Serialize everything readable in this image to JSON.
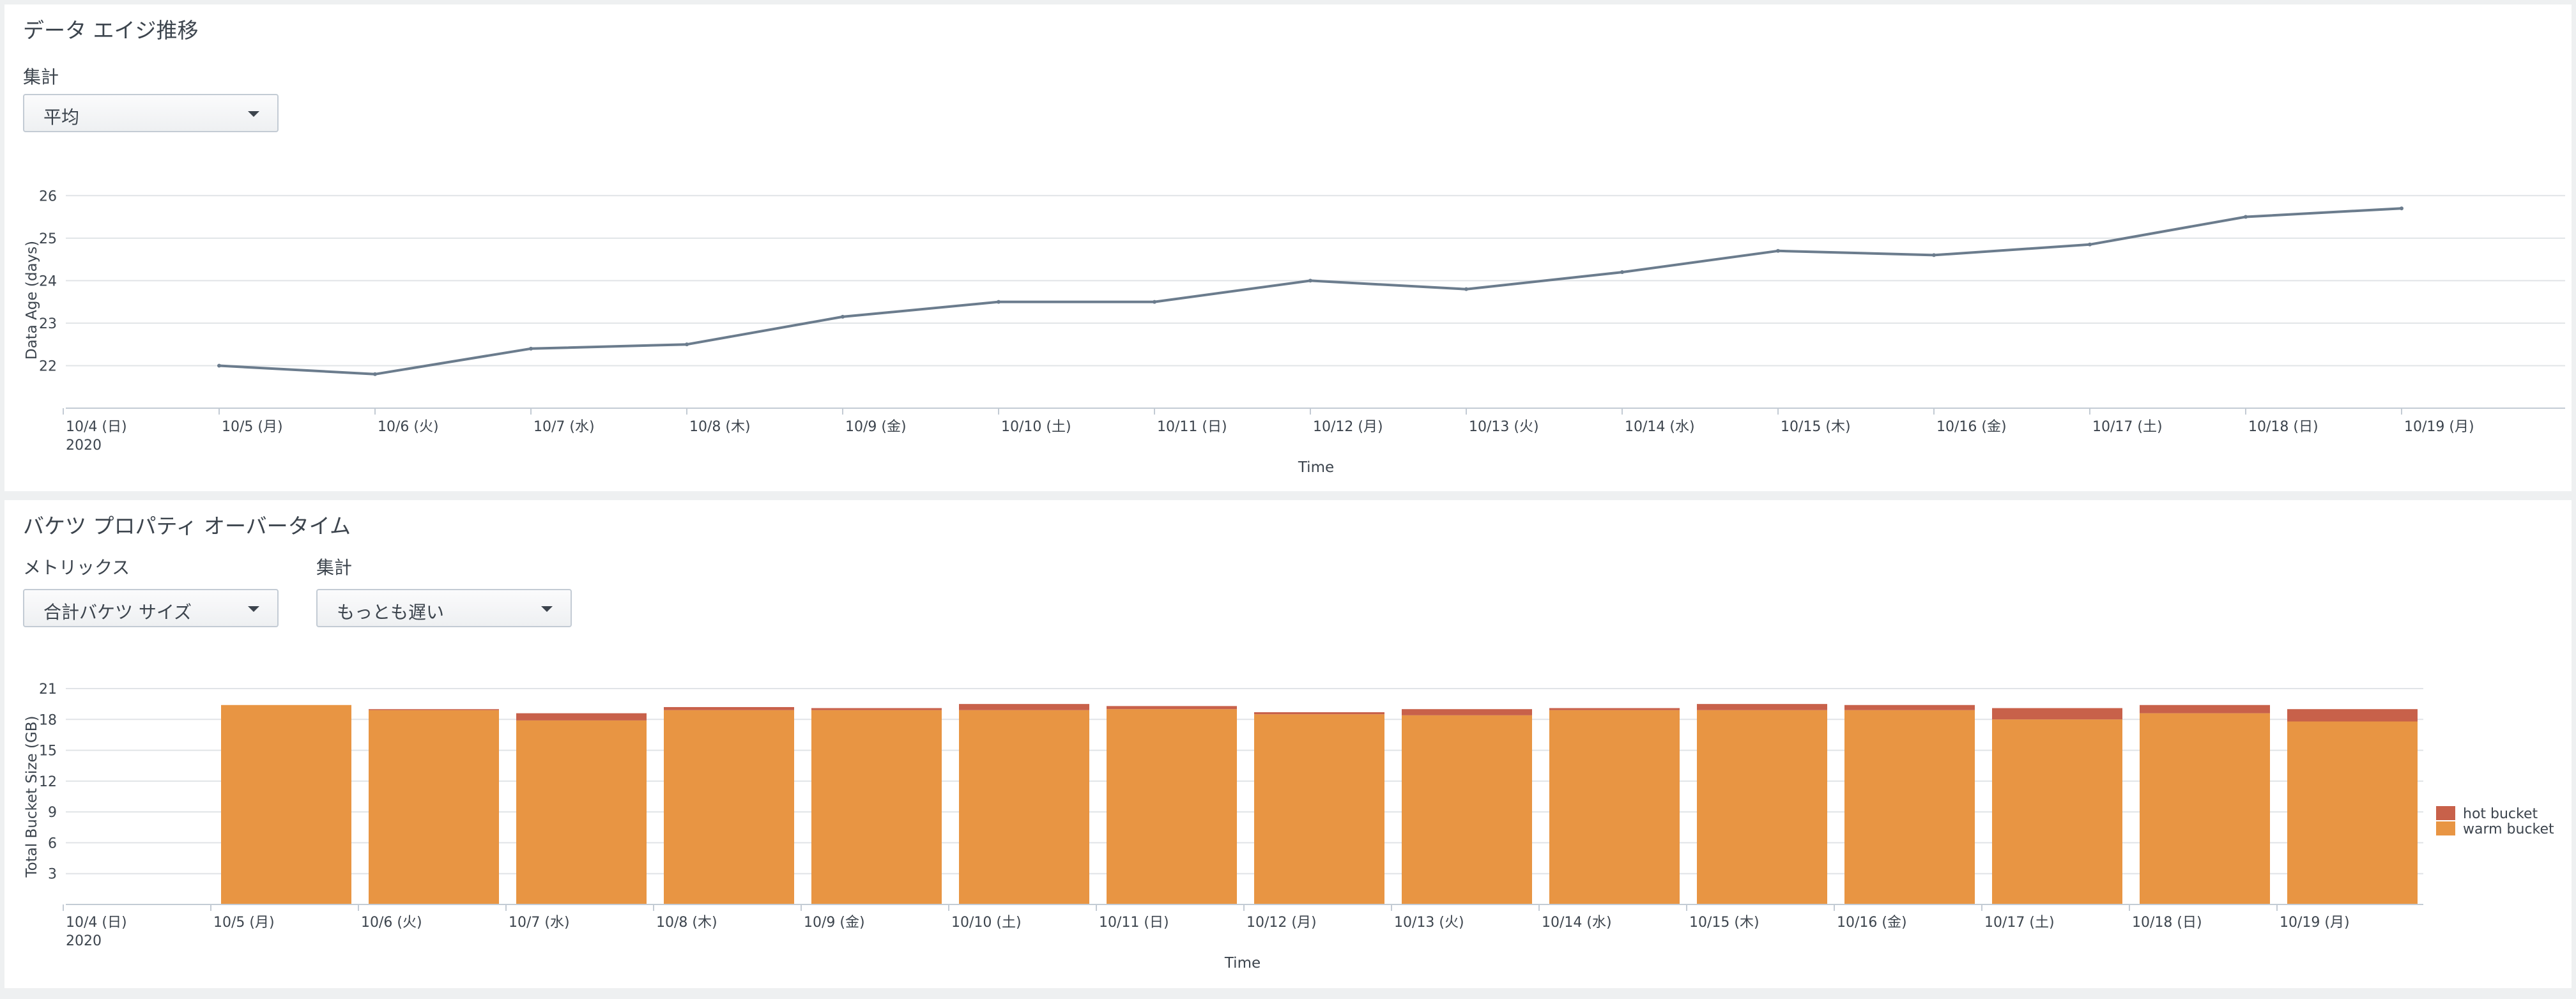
{
  "panel1": {
    "title": "データ エイジ推移",
    "aggregation_label": "集計",
    "aggregation_value": "平均"
  },
  "panel2": {
    "title": "バケツ プロパティ オーバータイム",
    "metrics_label": "メトリックス",
    "metrics_value": "合計バケツ サイズ",
    "aggregation_label": "集計",
    "aggregation_value": "もっとも遅い"
  },
  "colors": {
    "line": "#6b7c8d",
    "hot_bucket": "#c8614a",
    "warm_bucket": "#e89543",
    "grid": "#e1e4e7",
    "axis": "#c3cbd4"
  },
  "chart_data": [
    {
      "type": "line",
      "title": "",
      "xlabel": "Time",
      "ylabel": "Data Age (days)",
      "year_label": "2020",
      "x_tick_labels": [
        "10/4 (日)",
        "10/5 (月)",
        "10/6 (火)",
        "10/7 (水)",
        "10/8 (木)",
        "10/9 (金)",
        "10/10 (土)",
        "10/11 (日)",
        "10/12 (月)",
        "10/13 (火)",
        "10/14 (水)",
        "10/15 (木)",
        "10/16 (金)",
        "10/17 (土)",
        "10/18 (日)",
        "10/19 (月)"
      ],
      "y_ticks": [
        22,
        23,
        24,
        25,
        26
      ],
      "ylim": [
        21,
        26.5
      ],
      "grid": true,
      "series": [
        {
          "x": [
            "10/5 (月)",
            "10/6 (火)",
            "10/7 (水)",
            "10/8 (木)",
            "10/9 (金)",
            "10/10 (土)",
            "10/11 (日)",
            "10/12 (月)",
            "10/13 (火)",
            "10/14 (水)",
            "10/15 (木)",
            "10/16 (金)",
            "10/17 (土)",
            "10/18 (日)",
            "10/19 (月)"
          ],
          "values": [
            22.0,
            21.8,
            22.4,
            22.5,
            23.15,
            23.5,
            23.5,
            24.0,
            23.8,
            24.2,
            24.7,
            24.6,
            24.85,
            25.5,
            25.7
          ]
        }
      ]
    },
    {
      "type": "bar",
      "stacked": true,
      "title": "",
      "xlabel": "Time",
      "ylabel": "Total Bucket Size (GB)",
      "year_label": "2020",
      "x_tick_labels": [
        "10/4 (日)",
        "10/5 (月)",
        "10/6 (火)",
        "10/7 (水)",
        "10/8 (木)",
        "10/9 (金)",
        "10/10 (土)",
        "10/11 (日)",
        "10/12 (月)",
        "10/13 (火)",
        "10/14 (水)",
        "10/15 (木)",
        "10/16 (金)",
        "10/17 (土)",
        "10/18 (日)",
        "10/19 (月)"
      ],
      "categories": [
        "10/5 (月)",
        "10/6 (火)",
        "10/7 (水)",
        "10/8 (木)",
        "10/9 (金)",
        "10/10 (土)",
        "10/11 (日)",
        "10/12 (月)",
        "10/13 (火)",
        "10/14 (水)",
        "10/15 (木)",
        "10/16 (金)",
        "10/17 (土)",
        "10/18 (日)",
        "10/19 (月)"
      ],
      "y_ticks": [
        3,
        6,
        9,
        12,
        15,
        18,
        21
      ],
      "ylim": [
        0,
        21
      ],
      "grid": true,
      "legend_position": "right",
      "series": [
        {
          "name": "warm bucket",
          "values": [
            19.4,
            18.9,
            17.9,
            18.9,
            18.9,
            18.9,
            19.0,
            18.5,
            18.4,
            18.9,
            18.9,
            18.9,
            18.0,
            18.6,
            17.8
          ]
        },
        {
          "name": "hot bucket",
          "values": [
            0.0,
            0.1,
            0.7,
            0.3,
            0.2,
            0.6,
            0.3,
            0.2,
            0.6,
            0.2,
            0.6,
            0.5,
            1.1,
            0.8,
            1.2
          ]
        }
      ]
    }
  ]
}
